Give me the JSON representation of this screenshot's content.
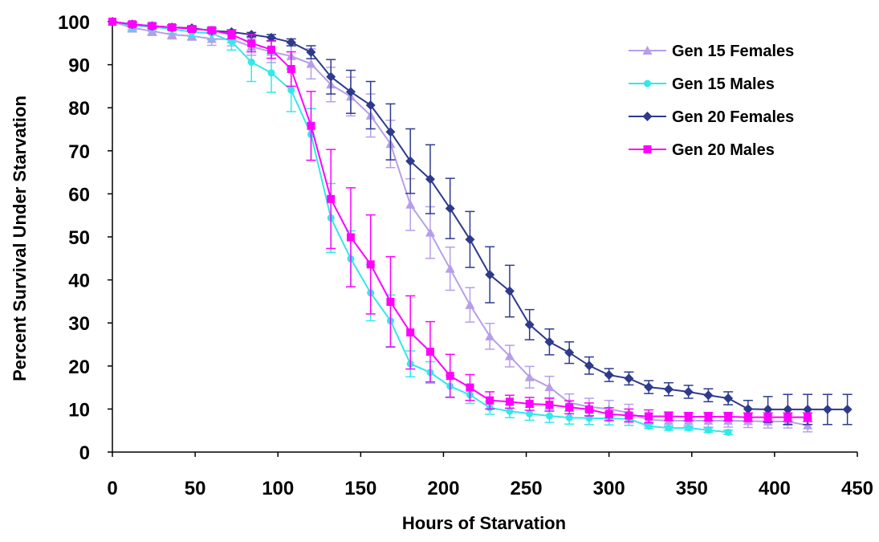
{
  "chart_data": {
    "type": "line",
    "title": "",
    "xlabel": "Hours of Starvation",
    "ylabel": "Percent Survival Under Starvation",
    "xlim": [
      0,
      450
    ],
    "ylim": [
      0,
      100
    ],
    "x_ticks": [
      "0",
      "50",
      "100",
      "150",
      "200",
      "250",
      "300",
      "350",
      "400",
      "450"
    ],
    "y_ticks": [
      "0",
      "10",
      "20",
      "30",
      "40",
      "50",
      "60",
      "70",
      "80",
      "90",
      "100"
    ],
    "grid": false,
    "legend_position": "top-right",
    "series": [
      {
        "name": "Gen 15 Females",
        "color": "#b79ee8",
        "marker": "triangle",
        "x": [
          0,
          12,
          24,
          36,
          48,
          60,
          72,
          84,
          96,
          108,
          120,
          132,
          144,
          156,
          168,
          180,
          192,
          204,
          216,
          228,
          240,
          252,
          264,
          276,
          288,
          300,
          312,
          324,
          336,
          348,
          360,
          372,
          384,
          396,
          408,
          420
        ],
        "y": [
          100,
          98.6,
          97.8,
          97,
          96.7,
          96,
          95.9,
          94.2,
          93,
          92,
          90.2,
          85.4,
          82.6,
          78.2,
          71.6,
          57.5,
          51,
          42.6,
          34.2,
          26.9,
          22.3,
          17.4,
          15.1,
          11.5,
          10.5,
          10,
          9.1,
          7.5,
          7.3,
          7.3,
          7.3,
          7.3,
          7.2,
          7.1,
          7.1,
          6.2
        ],
        "err": [
          0,
          1,
          1,
          1,
          1,
          1.5,
          1.5,
          2,
          2.5,
          3,
          3.5,
          4,
          4.5,
          5,
          5.5,
          6,
          6,
          5,
          4,
          3,
          2.5,
          2.5,
          2.5,
          2,
          2,
          2,
          2,
          1.5,
          1.5,
          1.5,
          1.5,
          1.5,
          1.5,
          1.5,
          1.5,
          1.5
        ]
      },
      {
        "name": "Gen 15 Males",
        "color": "#33e8e8",
        "marker": "circle",
        "x": [
          0,
          12,
          24,
          36,
          48,
          60,
          72,
          84,
          96,
          108,
          120,
          132,
          144,
          156,
          168,
          180,
          192,
          204,
          216,
          228,
          240,
          252,
          264,
          276,
          288,
          300,
          312,
          324,
          336,
          348,
          360,
          372
        ],
        "y": [
          100,
          99.1,
          98.8,
          98.3,
          97.6,
          97.3,
          95.4,
          90.6,
          88.1,
          84.1,
          73.8,
          54.4,
          44.9,
          37,
          30.5,
          20.5,
          18.5,
          15.3,
          13.3,
          10.3,
          9.5,
          8.9,
          8.4,
          8,
          7.9,
          7.8,
          7.7,
          6,
          5.6,
          5.6,
          5.1,
          4.6
        ],
        "err": [
          0,
          1,
          1,
          1,
          1,
          1.5,
          2,
          4.5,
          4.5,
          5,
          6,
          8,
          6.5,
          6.5,
          6,
          3,
          2.5,
          2.5,
          2,
          1.5,
          1.5,
          1.5,
          1.5,
          1.5,
          1.5,
          1.5,
          1.5,
          0.5,
          0.5,
          0.5,
          0.5,
          0.5
        ]
      },
      {
        "name": "Gen 20 Females",
        "color": "#2e3a8c",
        "marker": "diamond",
        "x": [
          0,
          12,
          24,
          36,
          48,
          60,
          72,
          84,
          96,
          108,
          120,
          132,
          144,
          156,
          168,
          180,
          192,
          204,
          216,
          228,
          240,
          252,
          264,
          276,
          288,
          300,
          312,
          324,
          336,
          348,
          360,
          372,
          384,
          396,
          408,
          420,
          432,
          444
        ],
        "y": [
          100,
          99.4,
          99,
          98.7,
          98.5,
          97.9,
          97.6,
          97,
          96.3,
          95.2,
          92.9,
          87.2,
          83.7,
          80.6,
          74.4,
          67.6,
          63.4,
          56.6,
          49.4,
          41.2,
          37.4,
          29.6,
          25.6,
          23.1,
          20.1,
          17.9,
          17.1,
          15.1,
          14.6,
          14,
          13.2,
          12.5,
          10,
          9.9,
          9.9,
          9.9,
          9.9,
          9.9
        ],
        "err": [
          0,
          0.5,
          0.5,
          0.5,
          0.5,
          0.5,
          0.5,
          0.5,
          0.7,
          0.8,
          1.5,
          4,
          5,
          5.5,
          6.5,
          7.5,
          8,
          7,
          6.5,
          6.5,
          6,
          3.5,
          3,
          2.5,
          2,
          1.5,
          1.5,
          1.5,
          1.5,
          1.5,
          1.5,
          1.5,
          2,
          3,
          3.5,
          3.5,
          3.5,
          3.5
        ]
      },
      {
        "name": "Gen 20 Males",
        "color": "#ff00ff",
        "marker": "square",
        "x": [
          0,
          12,
          24,
          36,
          48,
          60,
          72,
          84,
          96,
          108,
          120,
          132,
          144,
          156,
          168,
          180,
          192,
          204,
          216,
          228,
          240,
          252,
          264,
          276,
          288,
          300,
          312,
          324,
          336,
          348,
          360,
          372,
          384,
          396,
          408,
          420
        ],
        "y": [
          100,
          99.4,
          99,
          98.7,
          98.3,
          98,
          97,
          95,
          93.5,
          89,
          75.8,
          58.8,
          49.9,
          43.6,
          34.9,
          27.8,
          23.3,
          17.7,
          15,
          12,
          11.7,
          11.2,
          11,
          10.4,
          9.9,
          8.8,
          8.5,
          8.3,
          8.3,
          8.2,
          8.2,
          8.2,
          8.1,
          8.1,
          8.1,
          8.1
        ],
        "err": [
          0,
          0.5,
          0.5,
          0.5,
          0.5,
          0.5,
          1,
          2,
          2,
          4,
          8,
          11.5,
          11.5,
          11.5,
          10.5,
          8.5,
          7,
          5,
          3,
          2,
          1.5,
          1.5,
          1.5,
          1.5,
          1.5,
          1.5,
          1.5,
          1.5,
          1,
          1,
          1,
          1,
          1,
          1,
          1,
          1
        ]
      }
    ]
  }
}
